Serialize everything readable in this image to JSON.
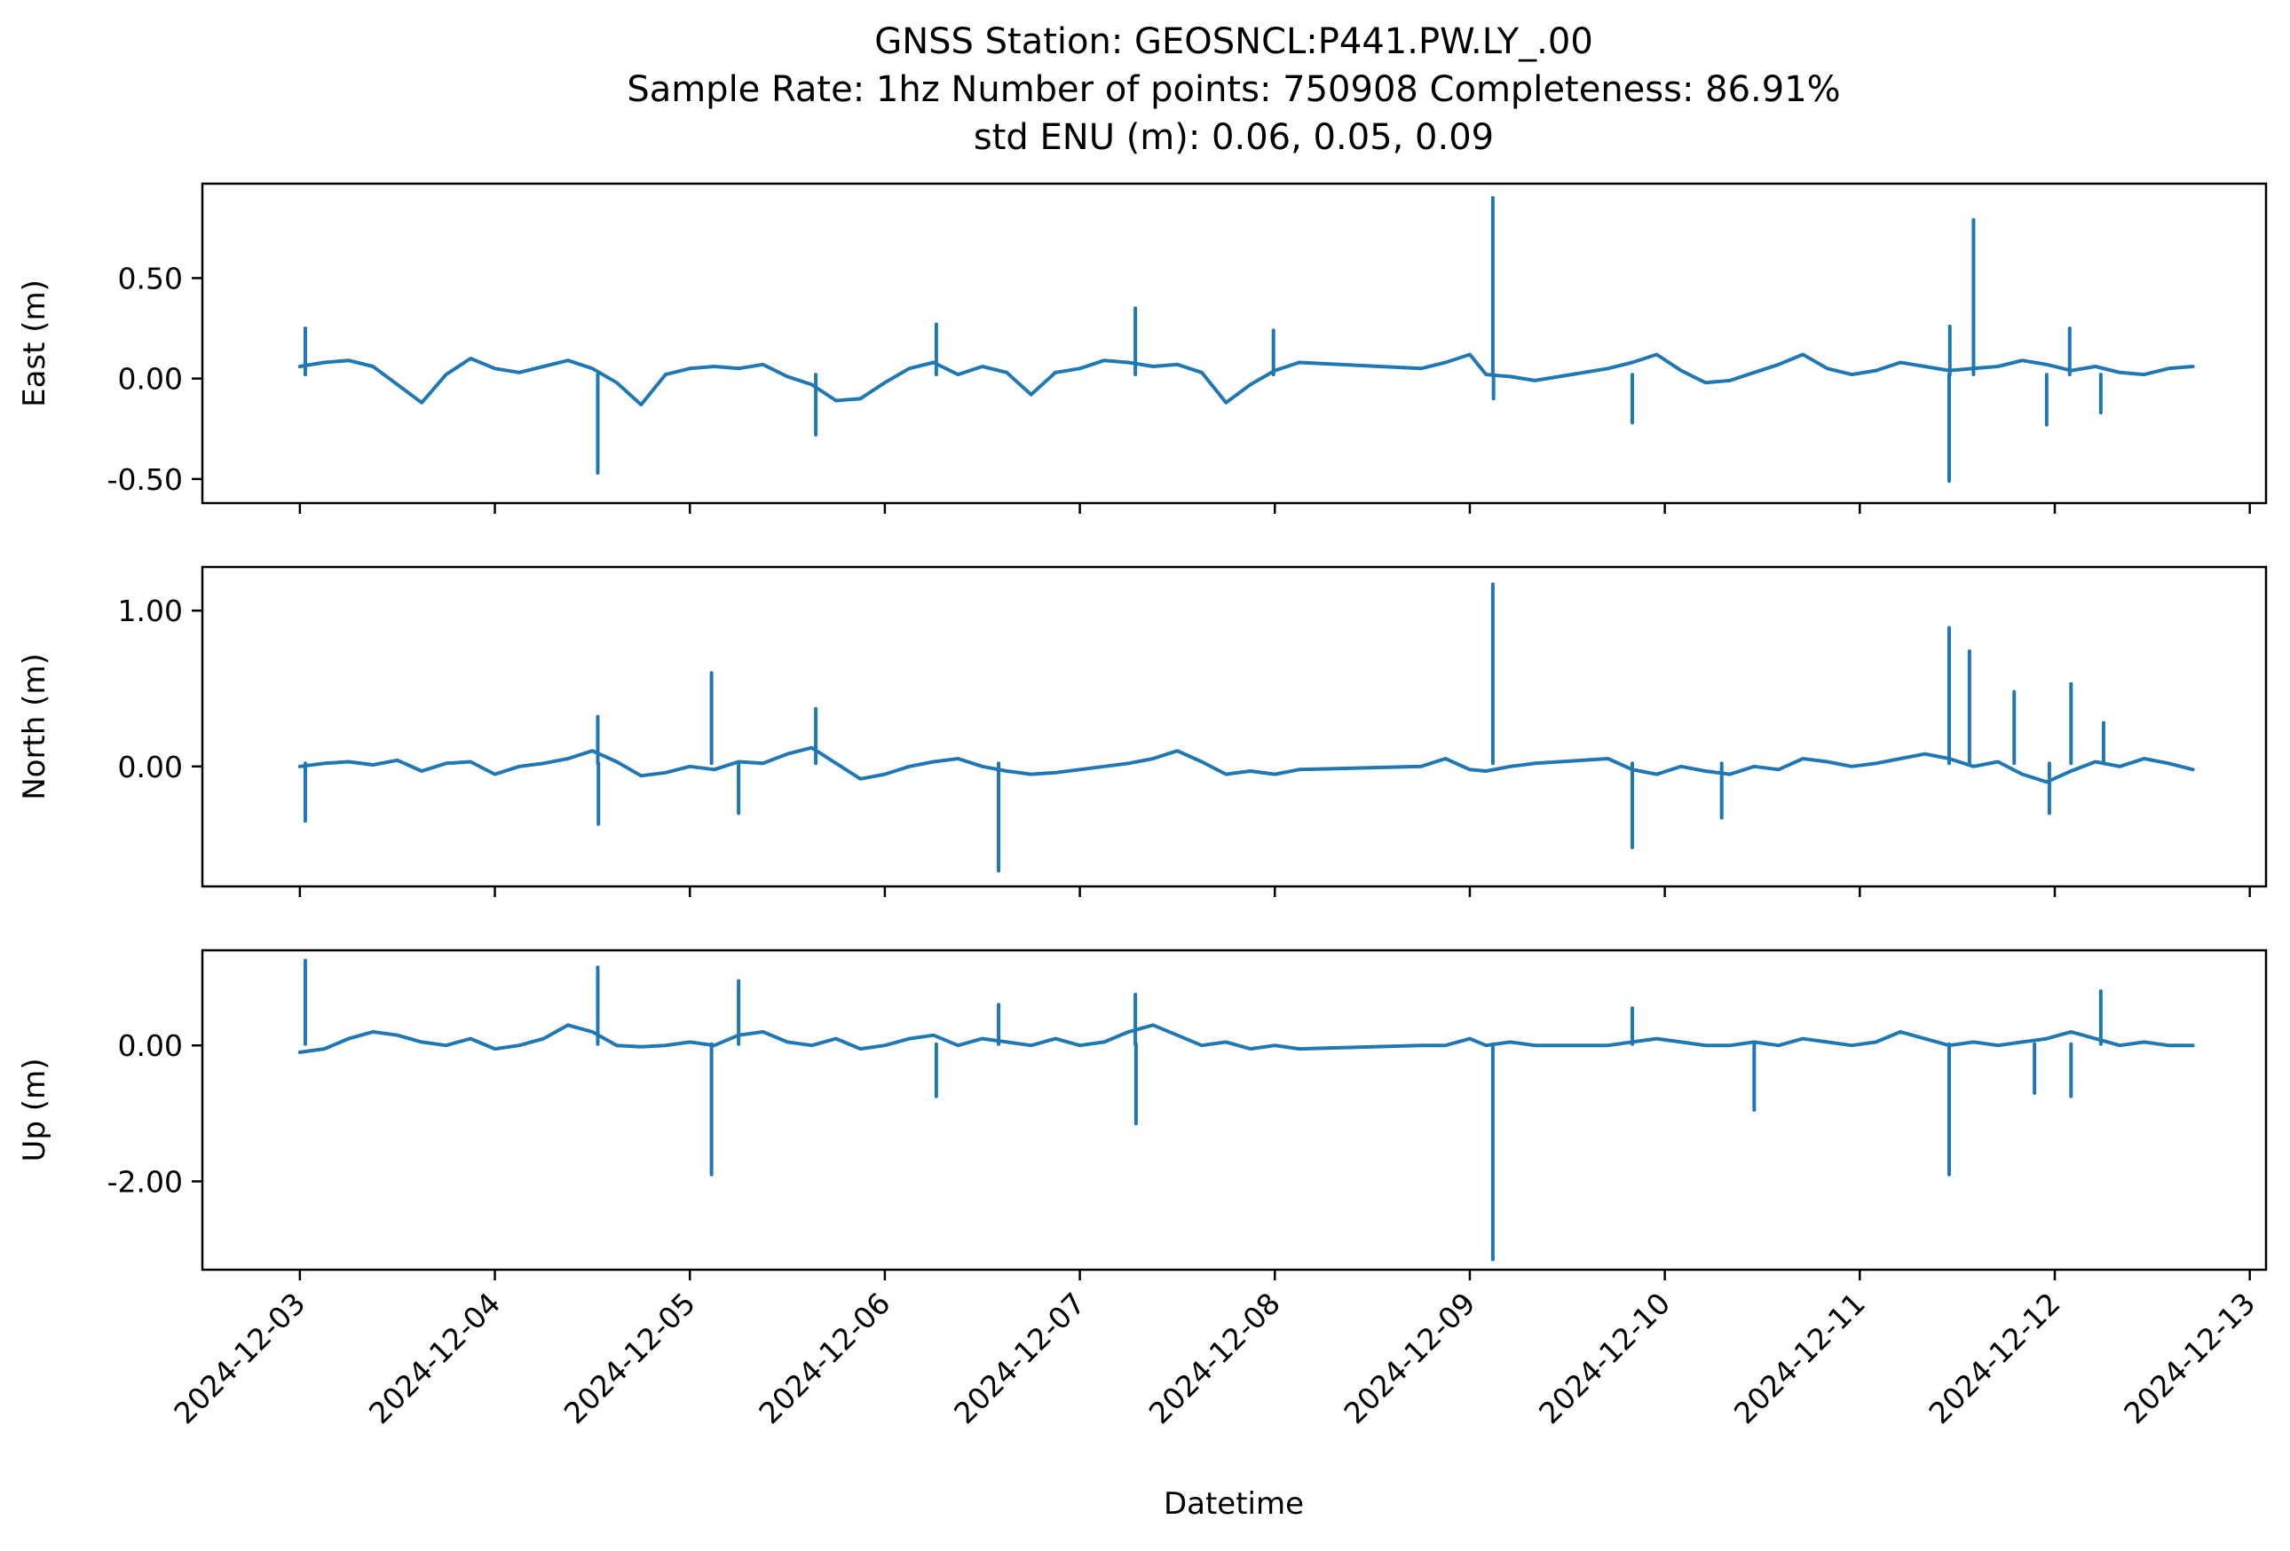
{
  "title": {
    "line1": "GNSS Station: GEOSNCL:P441.PW.LY_.00",
    "line2": "Sample Rate: 1hz   Number of points: 750908    Completeness:  86.91%",
    "line3": "std ENU (m):  0.06, 0.05, 0.09"
  },
  "xlabel": "Datetime",
  "colors": {
    "series": "#1f77b4",
    "axes": "#000000",
    "background": "#ffffff"
  },
  "chart_data": [
    {
      "type": "line",
      "panel": "east",
      "ylabel": "East (m)",
      "ylim": [
        -0.62,
        0.97
      ],
      "yticks": [
        0.5,
        0.0,
        -0.5
      ],
      "ytick_labels": [
        "0.50",
        "0.00",
        "-0.50"
      ],
      "x_ticks": [
        "2024-12-03",
        "2024-12-04",
        "2024-12-05",
        "2024-12-06",
        "2024-12-07",
        "2024-12-08",
        "2024-12-09",
        "2024-12-10",
        "2024-12-11",
        "2024-12-12",
        "2024-12-13"
      ],
      "x_tick_labels_shown": false,
      "xlim": [
        "2024-12-02T12:00",
        "2024-12-13T02:00"
      ],
      "series": [
        {
          "x": [
            "2024-12-03T00:00",
            "2024-12-03T03:00",
            "2024-12-03T06:00",
            "2024-12-03T09:00",
            "2024-12-03T12:00",
            "2024-12-03T15:00",
            "2024-12-03T18:00",
            "2024-12-03T21:00",
            "2024-12-04T00:00",
            "2024-12-04T03:00",
            "2024-12-04T06:00",
            "2024-12-04T09:00",
            "2024-12-04T12:00",
            "2024-12-04T15:00",
            "2024-12-04T18:00",
            "2024-12-04T21:00",
            "2024-12-05T00:00",
            "2024-12-05T03:00",
            "2024-12-05T06:00",
            "2024-12-05T09:00",
            "2024-12-05T12:00",
            "2024-12-05T15:00",
            "2024-12-05T18:00",
            "2024-12-05T21:00",
            "2024-12-06T00:00",
            "2024-12-06T03:00",
            "2024-12-06T06:00",
            "2024-12-06T09:00",
            "2024-12-06T12:00",
            "2024-12-06T15:00",
            "2024-12-06T18:00",
            "2024-12-06T21:00",
            "2024-12-07T00:00",
            "2024-12-07T03:00",
            "2024-12-07T06:00",
            "2024-12-07T09:00",
            "2024-12-07T12:00",
            "2024-12-07T15:00",
            "2024-12-07T18:00",
            "2024-12-07T21:00",
            "2024-12-08T00:00",
            "2024-12-08T03:00",
            "2024-12-08T18:00",
            "2024-12-08T21:00",
            "2024-12-09T00:00",
            "2024-12-09T02:00",
            "2024-12-09T05:00",
            "2024-12-09T08:00",
            "2024-12-09T17:00",
            "2024-12-09T20:00",
            "2024-12-09T23:00",
            "2024-12-10T02:00",
            "2024-12-10T05:00",
            "2024-12-10T08:00",
            "2024-12-10T11:00",
            "2024-12-10T14:00",
            "2024-12-10T17:00",
            "2024-12-10T20:00",
            "2024-12-10T23:00",
            "2024-12-11T02:00",
            "2024-12-11T05:00",
            "2024-12-11T08:00",
            "2024-12-11T11:00",
            "2024-12-11T14:00",
            "2024-12-11T17:00",
            "2024-12-11T20:00",
            "2024-12-11T23:00",
            "2024-12-12T02:00",
            "2024-12-12T05:00",
            "2024-12-12T08:00",
            "2024-12-12T11:00",
            "2024-12-12T14:00",
            "2024-12-12T17:00"
          ],
          "y": [
            0.06,
            0.08,
            0.09,
            0.06,
            -0.03,
            -0.12,
            0.02,
            0.1,
            0.05,
            0.03,
            0.06,
            0.09,
            0.05,
            -0.02,
            -0.13,
            0.02,
            0.05,
            0.06,
            0.05,
            0.07,
            0.01,
            -0.03,
            -0.11,
            -0.1,
            -0.02,
            0.05,
            0.08,
            0.02,
            0.06,
            0.03,
            -0.08,
            0.03,
            0.05,
            0.09,
            0.08,
            0.06,
            0.07,
            0.03,
            -0.12,
            -0.03,
            0.04,
            0.08,
            0.05,
            0.08,
            0.12,
            0.02,
            0.01,
            -0.01,
            0.05,
            0.08,
            0.12,
            0.04,
            -0.02,
            -0.01,
            0.03,
            0.07,
            0.12,
            0.05,
            0.02,
            0.04,
            0.08,
            0.06,
            0.04,
            0.05,
            0.06,
            0.09,
            0.07,
            0.04,
            0.06,
            0.03,
            0.02,
            0.05,
            0.06
          ]
        }
      ],
      "spikes": [
        {
          "x": "2024-12-03T00:40",
          "y": 0.25
        },
        {
          "x": "2024-12-04T12:40",
          "y": -0.47
        },
        {
          "x": "2024-12-05T15:30",
          "y": -0.28
        },
        {
          "x": "2024-12-06T06:20",
          "y": 0.27
        },
        {
          "x": "2024-12-07T06:50",
          "y": 0.35
        },
        {
          "x": "2024-12-07T23:50",
          "y": 0.24
        },
        {
          "x": "2024-12-09T02:50",
          "y": 0.9
        },
        {
          "x": "2024-12-09T02:55",
          "y": -0.1
        },
        {
          "x": "2024-12-09T20:00",
          "y": -0.22
        },
        {
          "x": "2024-12-11T11:00",
          "y": -0.51
        },
        {
          "x": "2024-12-11T11:05",
          "y": 0.26
        },
        {
          "x": "2024-12-11T14:00",
          "y": 0.79
        },
        {
          "x": "2024-12-11T23:00",
          "y": -0.23
        },
        {
          "x": "2024-12-12T05:40",
          "y": -0.17
        },
        {
          "x": "2024-12-12T01:50",
          "y": 0.25
        }
      ]
    },
    {
      "type": "line",
      "panel": "north",
      "ylabel": "North (m)",
      "ylim": [
        -0.77,
        1.28
      ],
      "yticks": [
        1.0,
        0.0
      ],
      "ytick_labels": [
        "1.00",
        "0.00"
      ],
      "x_ticks": [
        "2024-12-03",
        "2024-12-04",
        "2024-12-05",
        "2024-12-06",
        "2024-12-07",
        "2024-12-08",
        "2024-12-09",
        "2024-12-10",
        "2024-12-11",
        "2024-12-12",
        "2024-12-13"
      ],
      "x_tick_labels_shown": false,
      "xlim": [
        "2024-12-02T12:00",
        "2024-12-13T02:00"
      ],
      "series": [
        {
          "x": [
            "2024-12-03T00:00",
            "2024-12-03T03:00",
            "2024-12-03T06:00",
            "2024-12-03T09:00",
            "2024-12-03T12:00",
            "2024-12-03T15:00",
            "2024-12-03T18:00",
            "2024-12-03T21:00",
            "2024-12-04T00:00",
            "2024-12-04T03:00",
            "2024-12-04T06:00",
            "2024-12-04T09:00",
            "2024-12-04T12:00",
            "2024-12-04T15:00",
            "2024-12-04T18:00",
            "2024-12-04T21:00",
            "2024-12-05T00:00",
            "2024-12-05T03:00",
            "2024-12-05T06:00",
            "2024-12-05T09:00",
            "2024-12-05T12:00",
            "2024-12-05T15:00",
            "2024-12-05T18:00",
            "2024-12-05T21:00",
            "2024-12-06T00:00",
            "2024-12-06T03:00",
            "2024-12-06T06:00",
            "2024-12-06T09:00",
            "2024-12-06T12:00",
            "2024-12-06T15:00",
            "2024-12-06T18:00",
            "2024-12-06T21:00",
            "2024-12-07T00:00",
            "2024-12-07T03:00",
            "2024-12-07T06:00",
            "2024-12-07T09:00",
            "2024-12-07T12:00",
            "2024-12-07T15:00",
            "2024-12-07T18:00",
            "2024-12-07T21:00",
            "2024-12-08T00:00",
            "2024-12-08T03:00",
            "2024-12-08T18:00",
            "2024-12-08T21:00",
            "2024-12-09T00:00",
            "2024-12-09T02:00",
            "2024-12-09T05:00",
            "2024-12-09T08:00",
            "2024-12-09T17:00",
            "2024-12-09T20:00",
            "2024-12-09T23:00",
            "2024-12-10T02:00",
            "2024-12-10T05:00",
            "2024-12-10T08:00",
            "2024-12-10T11:00",
            "2024-12-10T14:00",
            "2024-12-10T17:00",
            "2024-12-10T20:00",
            "2024-12-10T23:00",
            "2024-12-11T02:00",
            "2024-12-11T05:00",
            "2024-12-11T08:00",
            "2024-12-11T11:00",
            "2024-12-11T14:00",
            "2024-12-11T17:00",
            "2024-12-11T20:00",
            "2024-12-11T23:00",
            "2024-12-12T02:00",
            "2024-12-12T05:00",
            "2024-12-12T08:00",
            "2024-12-12T11:00",
            "2024-12-12T14:00",
            "2024-12-12T17:00"
          ],
          "y": [
            0.0,
            0.02,
            0.03,
            0.01,
            0.04,
            -0.03,
            0.02,
            0.03,
            -0.05,
            0.0,
            0.02,
            0.05,
            0.1,
            0.03,
            -0.06,
            -0.04,
            0.0,
            -0.02,
            0.03,
            0.02,
            0.08,
            0.12,
            0.02,
            -0.08,
            -0.05,
            0.0,
            0.03,
            0.05,
            0.0,
            -0.03,
            -0.05,
            -0.04,
            -0.02,
            0.0,
            0.02,
            0.05,
            0.1,
            0.03,
            -0.05,
            -0.03,
            -0.05,
            -0.02,
            0.0,
            0.05,
            -0.02,
            -0.03,
            0.0,
            0.02,
            0.05,
            -0.02,
            -0.05,
            0.0,
            -0.03,
            -0.05,
            0.0,
            -0.02,
            0.05,
            0.03,
            0.0,
            0.02,
            0.05,
            0.08,
            0.05,
            0.0,
            0.03,
            -0.05,
            -0.1,
            -0.03,
            0.03,
            0.0,
            0.05,
            0.02,
            -0.02
          ]
        }
      ],
      "spikes": [
        {
          "x": "2024-12-03T00:40",
          "y": -0.35
        },
        {
          "x": "2024-12-04T12:40",
          "y": 0.32
        },
        {
          "x": "2024-12-04T12:45",
          "y": -0.37
        },
        {
          "x": "2024-12-05T02:40",
          "y": 0.6
        },
        {
          "x": "2024-12-05T06:00",
          "y": -0.3
        },
        {
          "x": "2024-12-05T15:30",
          "y": 0.37
        },
        {
          "x": "2024-12-06T14:00",
          "y": -0.67
        },
        {
          "x": "2024-12-09T02:50",
          "y": 1.17
        },
        {
          "x": "2024-12-09T20:00",
          "y": -0.52
        },
        {
          "x": "2024-12-10T07:00",
          "y": -0.33
        },
        {
          "x": "2024-12-11T11:00",
          "y": 0.89
        },
        {
          "x": "2024-12-11T13:30",
          "y": 0.74
        },
        {
          "x": "2024-12-11T19:00",
          "y": 0.48
        },
        {
          "x": "2024-12-11T23:20",
          "y": -0.3
        },
        {
          "x": "2024-12-12T02:00",
          "y": 0.53
        },
        {
          "x": "2024-12-12T06:00",
          "y": 0.28
        }
      ]
    },
    {
      "type": "line",
      "panel": "up",
      "ylabel": "Up (m)",
      "ylim": [
        -3.3,
        1.4
      ],
      "yticks": [
        0.0,
        -2.0
      ],
      "ytick_labels": [
        "0.00",
        "-2.00"
      ],
      "x_ticks": [
        "2024-12-03",
        "2024-12-04",
        "2024-12-05",
        "2024-12-06",
        "2024-12-07",
        "2024-12-08",
        "2024-12-09",
        "2024-12-10",
        "2024-12-11",
        "2024-12-12",
        "2024-12-13"
      ],
      "x_tick_labels": [
        "2024-12-03",
        "2024-12-04",
        "2024-12-05",
        "2024-12-06",
        "2024-12-07",
        "2024-12-08",
        "2024-12-09",
        "2024-12-10",
        "2024-12-11",
        "2024-12-12",
        "2024-12-13"
      ],
      "xlim": [
        "2024-12-02T12:00",
        "2024-12-13T02:00"
      ],
      "series": [
        {
          "x": [
            "2024-12-03T00:00",
            "2024-12-03T03:00",
            "2024-12-03T06:00",
            "2024-12-03T09:00",
            "2024-12-03T12:00",
            "2024-12-03T15:00",
            "2024-12-03T18:00",
            "2024-12-03T21:00",
            "2024-12-04T00:00",
            "2024-12-04T03:00",
            "2024-12-04T06:00",
            "2024-12-04T09:00",
            "2024-12-04T12:00",
            "2024-12-04T15:00",
            "2024-12-04T18:00",
            "2024-12-04T21:00",
            "2024-12-05T00:00",
            "2024-12-05T03:00",
            "2024-12-05T06:00",
            "2024-12-05T09:00",
            "2024-12-05T12:00",
            "2024-12-05T15:00",
            "2024-12-05T18:00",
            "2024-12-05T21:00",
            "2024-12-06T00:00",
            "2024-12-06T03:00",
            "2024-12-06T06:00",
            "2024-12-06T09:00",
            "2024-12-06T12:00",
            "2024-12-06T15:00",
            "2024-12-06T18:00",
            "2024-12-06T21:00",
            "2024-12-07T00:00",
            "2024-12-07T03:00",
            "2024-12-07T06:00",
            "2024-12-07T09:00",
            "2024-12-07T12:00",
            "2024-12-07T15:00",
            "2024-12-07T18:00",
            "2024-12-07T21:00",
            "2024-12-08T00:00",
            "2024-12-08T03:00",
            "2024-12-08T18:00",
            "2024-12-08T21:00",
            "2024-12-09T00:00",
            "2024-12-09T02:00",
            "2024-12-09T05:00",
            "2024-12-09T08:00",
            "2024-12-09T17:00",
            "2024-12-09T20:00",
            "2024-12-09T23:00",
            "2024-12-10T02:00",
            "2024-12-10T05:00",
            "2024-12-10T08:00",
            "2024-12-10T11:00",
            "2024-12-10T14:00",
            "2024-12-10T17:00",
            "2024-12-10T20:00",
            "2024-12-10T23:00",
            "2024-12-11T02:00",
            "2024-12-11T05:00",
            "2024-12-11T08:00",
            "2024-12-11T11:00",
            "2024-12-11T14:00",
            "2024-12-11T17:00",
            "2024-12-11T20:00",
            "2024-12-11T23:00",
            "2024-12-12T02:00",
            "2024-12-12T05:00",
            "2024-12-12T08:00",
            "2024-12-12T11:00",
            "2024-12-12T14:00",
            "2024-12-12T17:00"
          ],
          "y": [
            -0.1,
            -0.05,
            0.1,
            0.2,
            0.15,
            0.05,
            0.0,
            0.1,
            -0.05,
            0.0,
            0.1,
            0.3,
            0.2,
            0.0,
            -0.02,
            0.0,
            0.05,
            0.0,
            0.15,
            0.2,
            0.05,
            0.0,
            0.1,
            -0.05,
            0.0,
            0.1,
            0.15,
            0.0,
            0.1,
            0.05,
            0.0,
            0.1,
            0.0,
            0.05,
            0.2,
            0.3,
            0.15,
            0.0,
            0.05,
            -0.05,
            0.0,
            -0.05,
            0.0,
            0.0,
            0.1,
            0.0,
            0.05,
            0.0,
            0.0,
            0.05,
            0.1,
            0.05,
            0.0,
            0.0,
            0.05,
            0.0,
            0.1,
            0.05,
            0.0,
            0.05,
            0.2,
            0.1,
            0.0,
            0.05,
            0.0,
            0.05,
            0.1,
            0.2,
            0.1,
            0.0,
            0.05,
            0.0,
            0.0
          ]
        }
      ],
      "spikes": [
        {
          "x": "2024-12-03T00:40",
          "y": 1.25
        },
        {
          "x": "2024-12-04T12:40",
          "y": 1.15
        },
        {
          "x": "2024-12-05T02:40",
          "y": -1.9
        },
        {
          "x": "2024-12-05T06:00",
          "y": 0.95
        },
        {
          "x": "2024-12-06T06:20",
          "y": -0.75
        },
        {
          "x": "2024-12-06T14:00",
          "y": 0.6
        },
        {
          "x": "2024-12-07T06:50",
          "y": 0.75
        },
        {
          "x": "2024-12-07T06:55",
          "y": -1.15
        },
        {
          "x": "2024-12-09T02:50",
          "y": -3.15
        },
        {
          "x": "2024-12-09T20:00",
          "y": 0.55
        },
        {
          "x": "2024-12-10T11:00",
          "y": -0.95
        },
        {
          "x": "2024-12-11T11:00",
          "y": -1.9
        },
        {
          "x": "2024-12-12T02:00",
          "y": -0.75
        },
        {
          "x": "2024-12-12T05:40",
          "y": 0.8
        },
        {
          "x": "2024-12-11T21:30",
          "y": -0.7
        }
      ]
    }
  ]
}
